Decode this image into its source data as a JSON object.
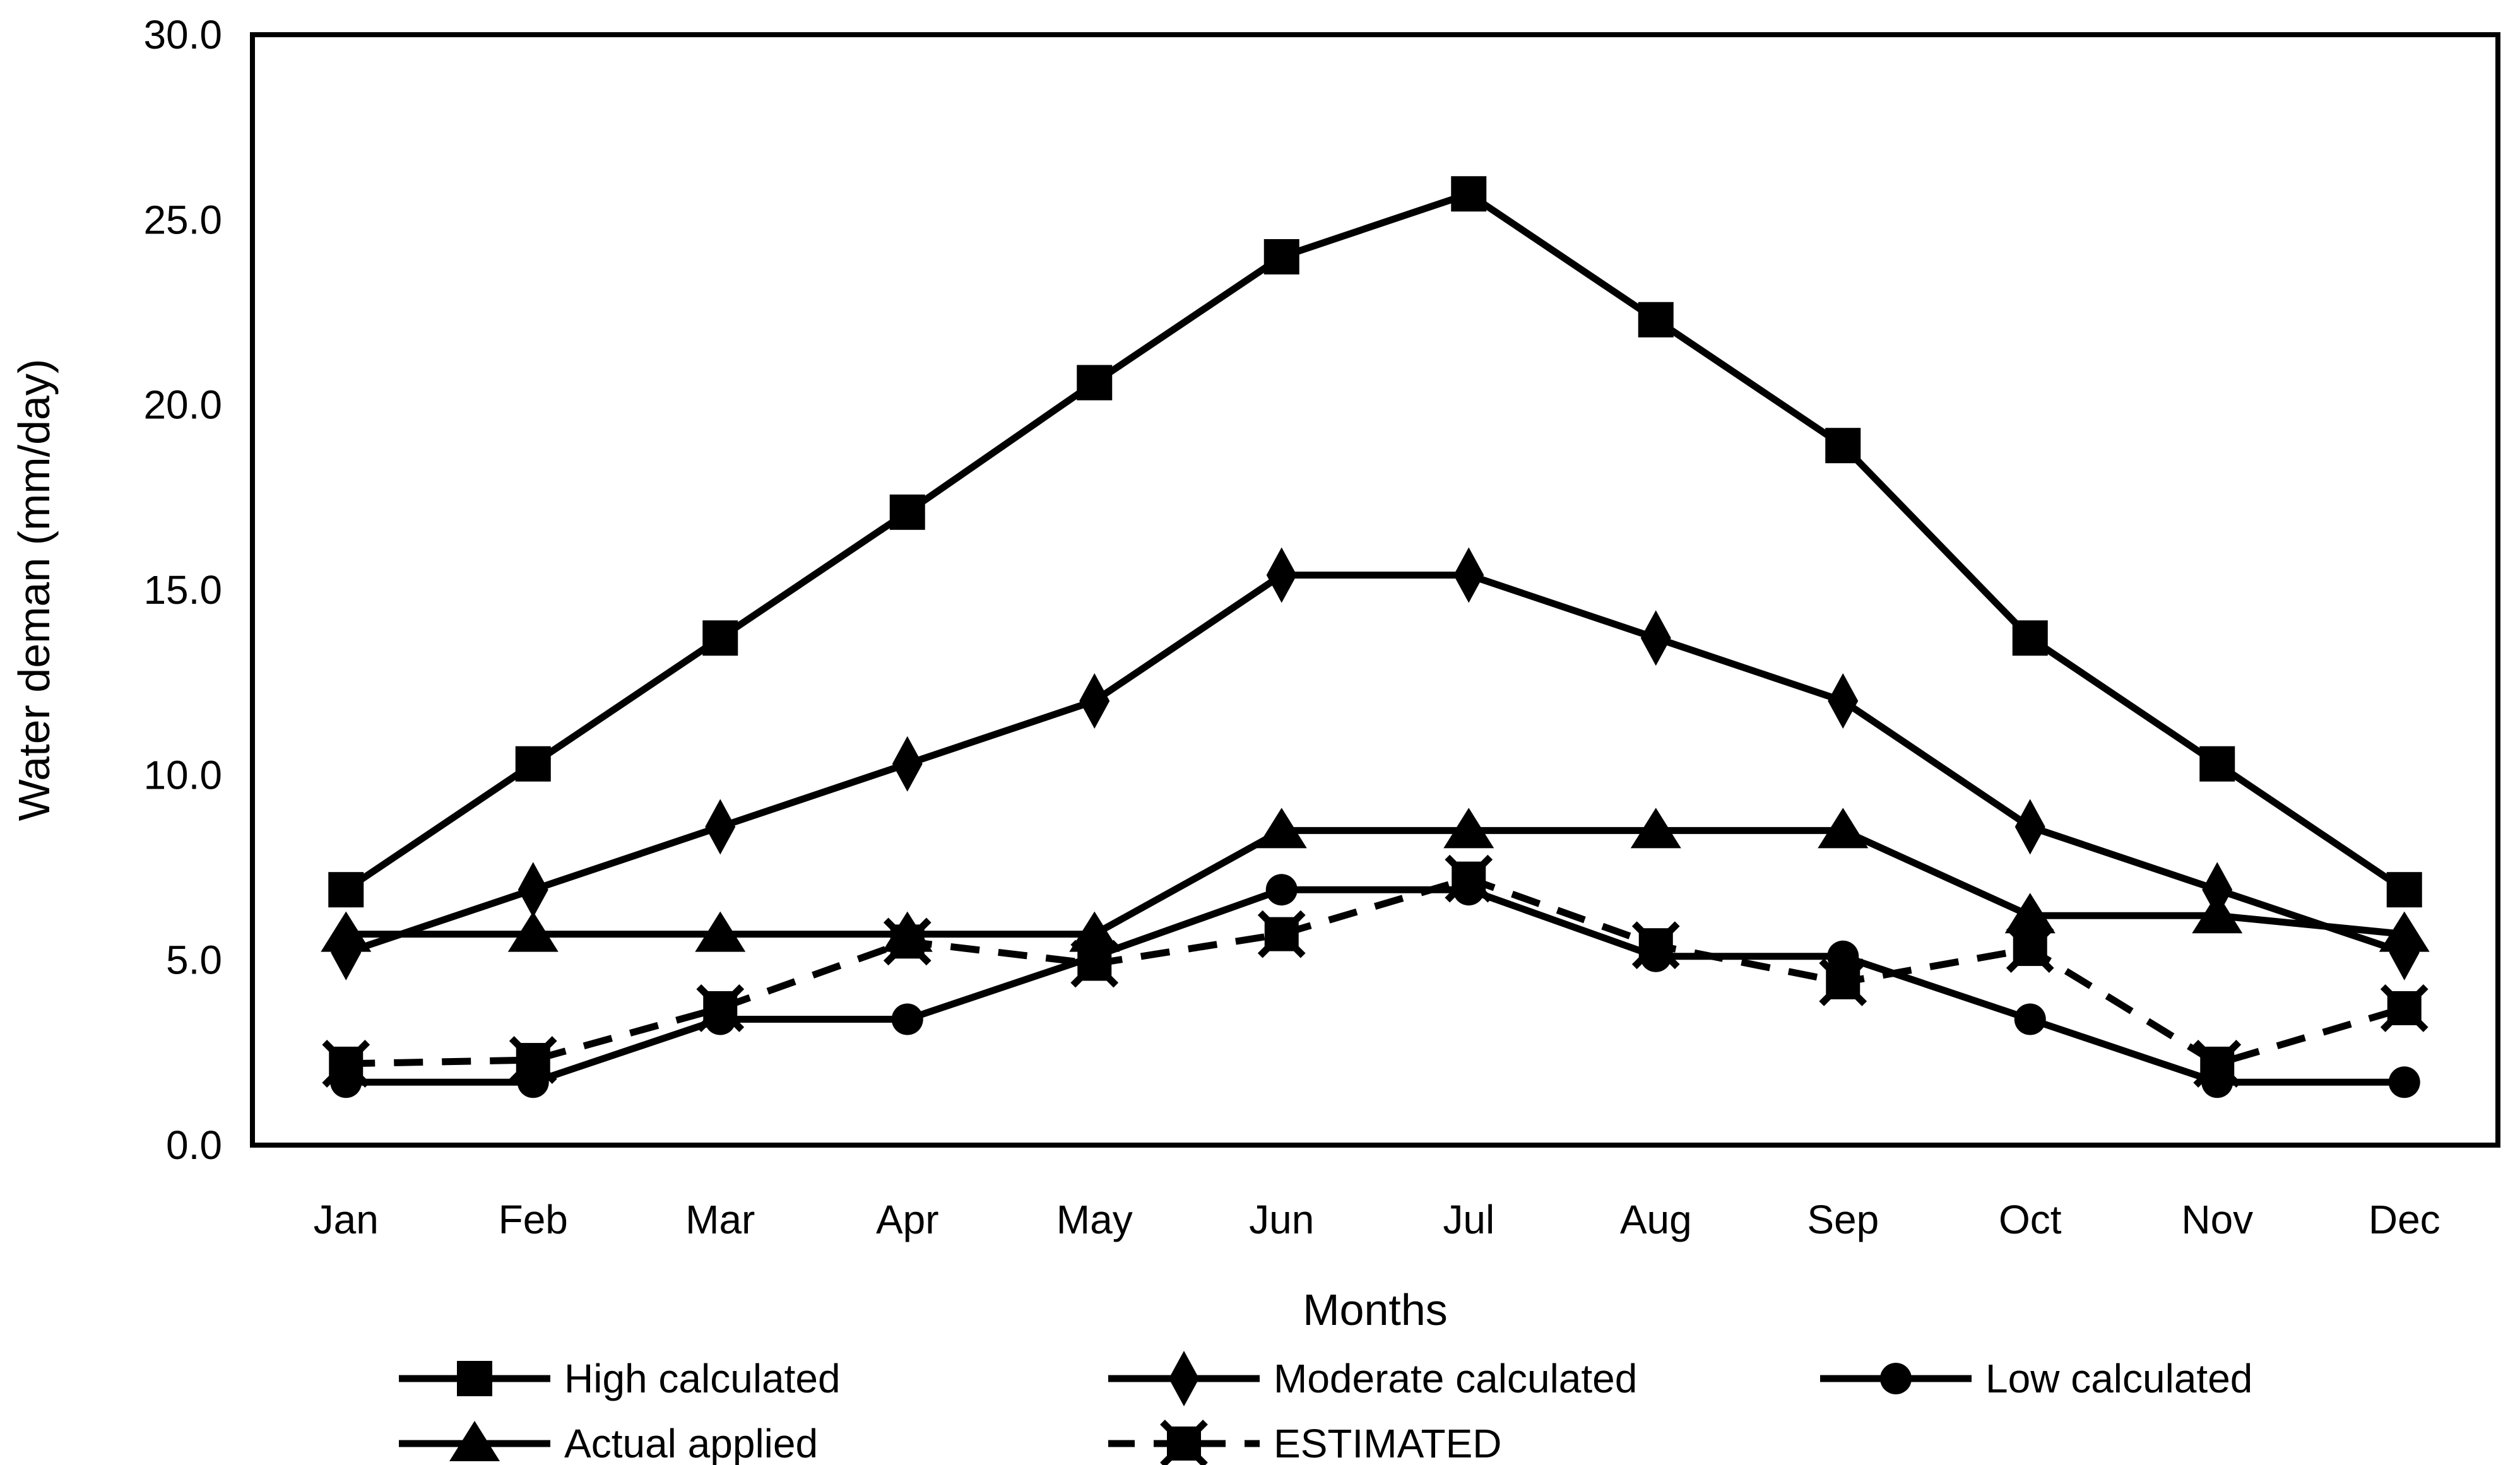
{
  "figure": {
    "background": "#ffffff",
    "ink_color": "#000000"
  },
  "chart_data": {
    "type": "line",
    "title": "",
    "xlabel": "Months",
    "ylabel": "Water deman (mm/day)",
    "categories": [
      "Jan",
      "Feb",
      "Mar",
      "Apr",
      "May",
      "Jun",
      "Jul",
      "Aug",
      "Sep",
      "Oct",
      "Nov",
      "Dec"
    ],
    "ylim": [
      0,
      30
    ],
    "ytick_step": 5,
    "ytick_labels": [
      "0.0",
      "5.0",
      "10.0",
      "15.0",
      "20.0",
      "25.0",
      "30.0"
    ],
    "grid": false,
    "legend_position": "bottom",
    "series": [
      {
        "name": "High calculated",
        "marker": "square",
        "line": "solid",
        "values": [
          6.9,
          10.3,
          13.7,
          17.1,
          20.6,
          24.0,
          25.7,
          22.3,
          18.9,
          13.7,
          10.3,
          6.9
        ]
      },
      {
        "name": "Moderate calculated",
        "marker": "diamond",
        "line": "solid",
        "values": [
          5.2,
          6.9,
          8.6,
          10.3,
          12.0,
          15.4,
          15.4,
          13.7,
          12.0,
          8.6,
          6.9,
          5.2
        ]
      },
      {
        "name": "Low calculated",
        "marker": "circle",
        "line": "solid",
        "values": [
          1.7,
          1.7,
          3.4,
          3.4,
          5.1,
          6.9,
          6.9,
          5.1,
          5.1,
          3.4,
          1.7,
          1.7
        ]
      },
      {
        "name": "Actual applied",
        "marker": "triangle",
        "line": "solid",
        "values": [
          5.7,
          5.7,
          5.7,
          5.7,
          5.7,
          8.5,
          8.5,
          8.5,
          8.5,
          6.2,
          6.2,
          5.7
        ]
      },
      {
        "name": "ESTIMATED",
        "marker": "square-x",
        "line": "dashed",
        "values": [
          2.2,
          2.3,
          3.7,
          5.5,
          4.9,
          5.7,
          7.2,
          5.4,
          4.4,
          5.3,
          2.2,
          3.7
        ]
      }
    ]
  }
}
